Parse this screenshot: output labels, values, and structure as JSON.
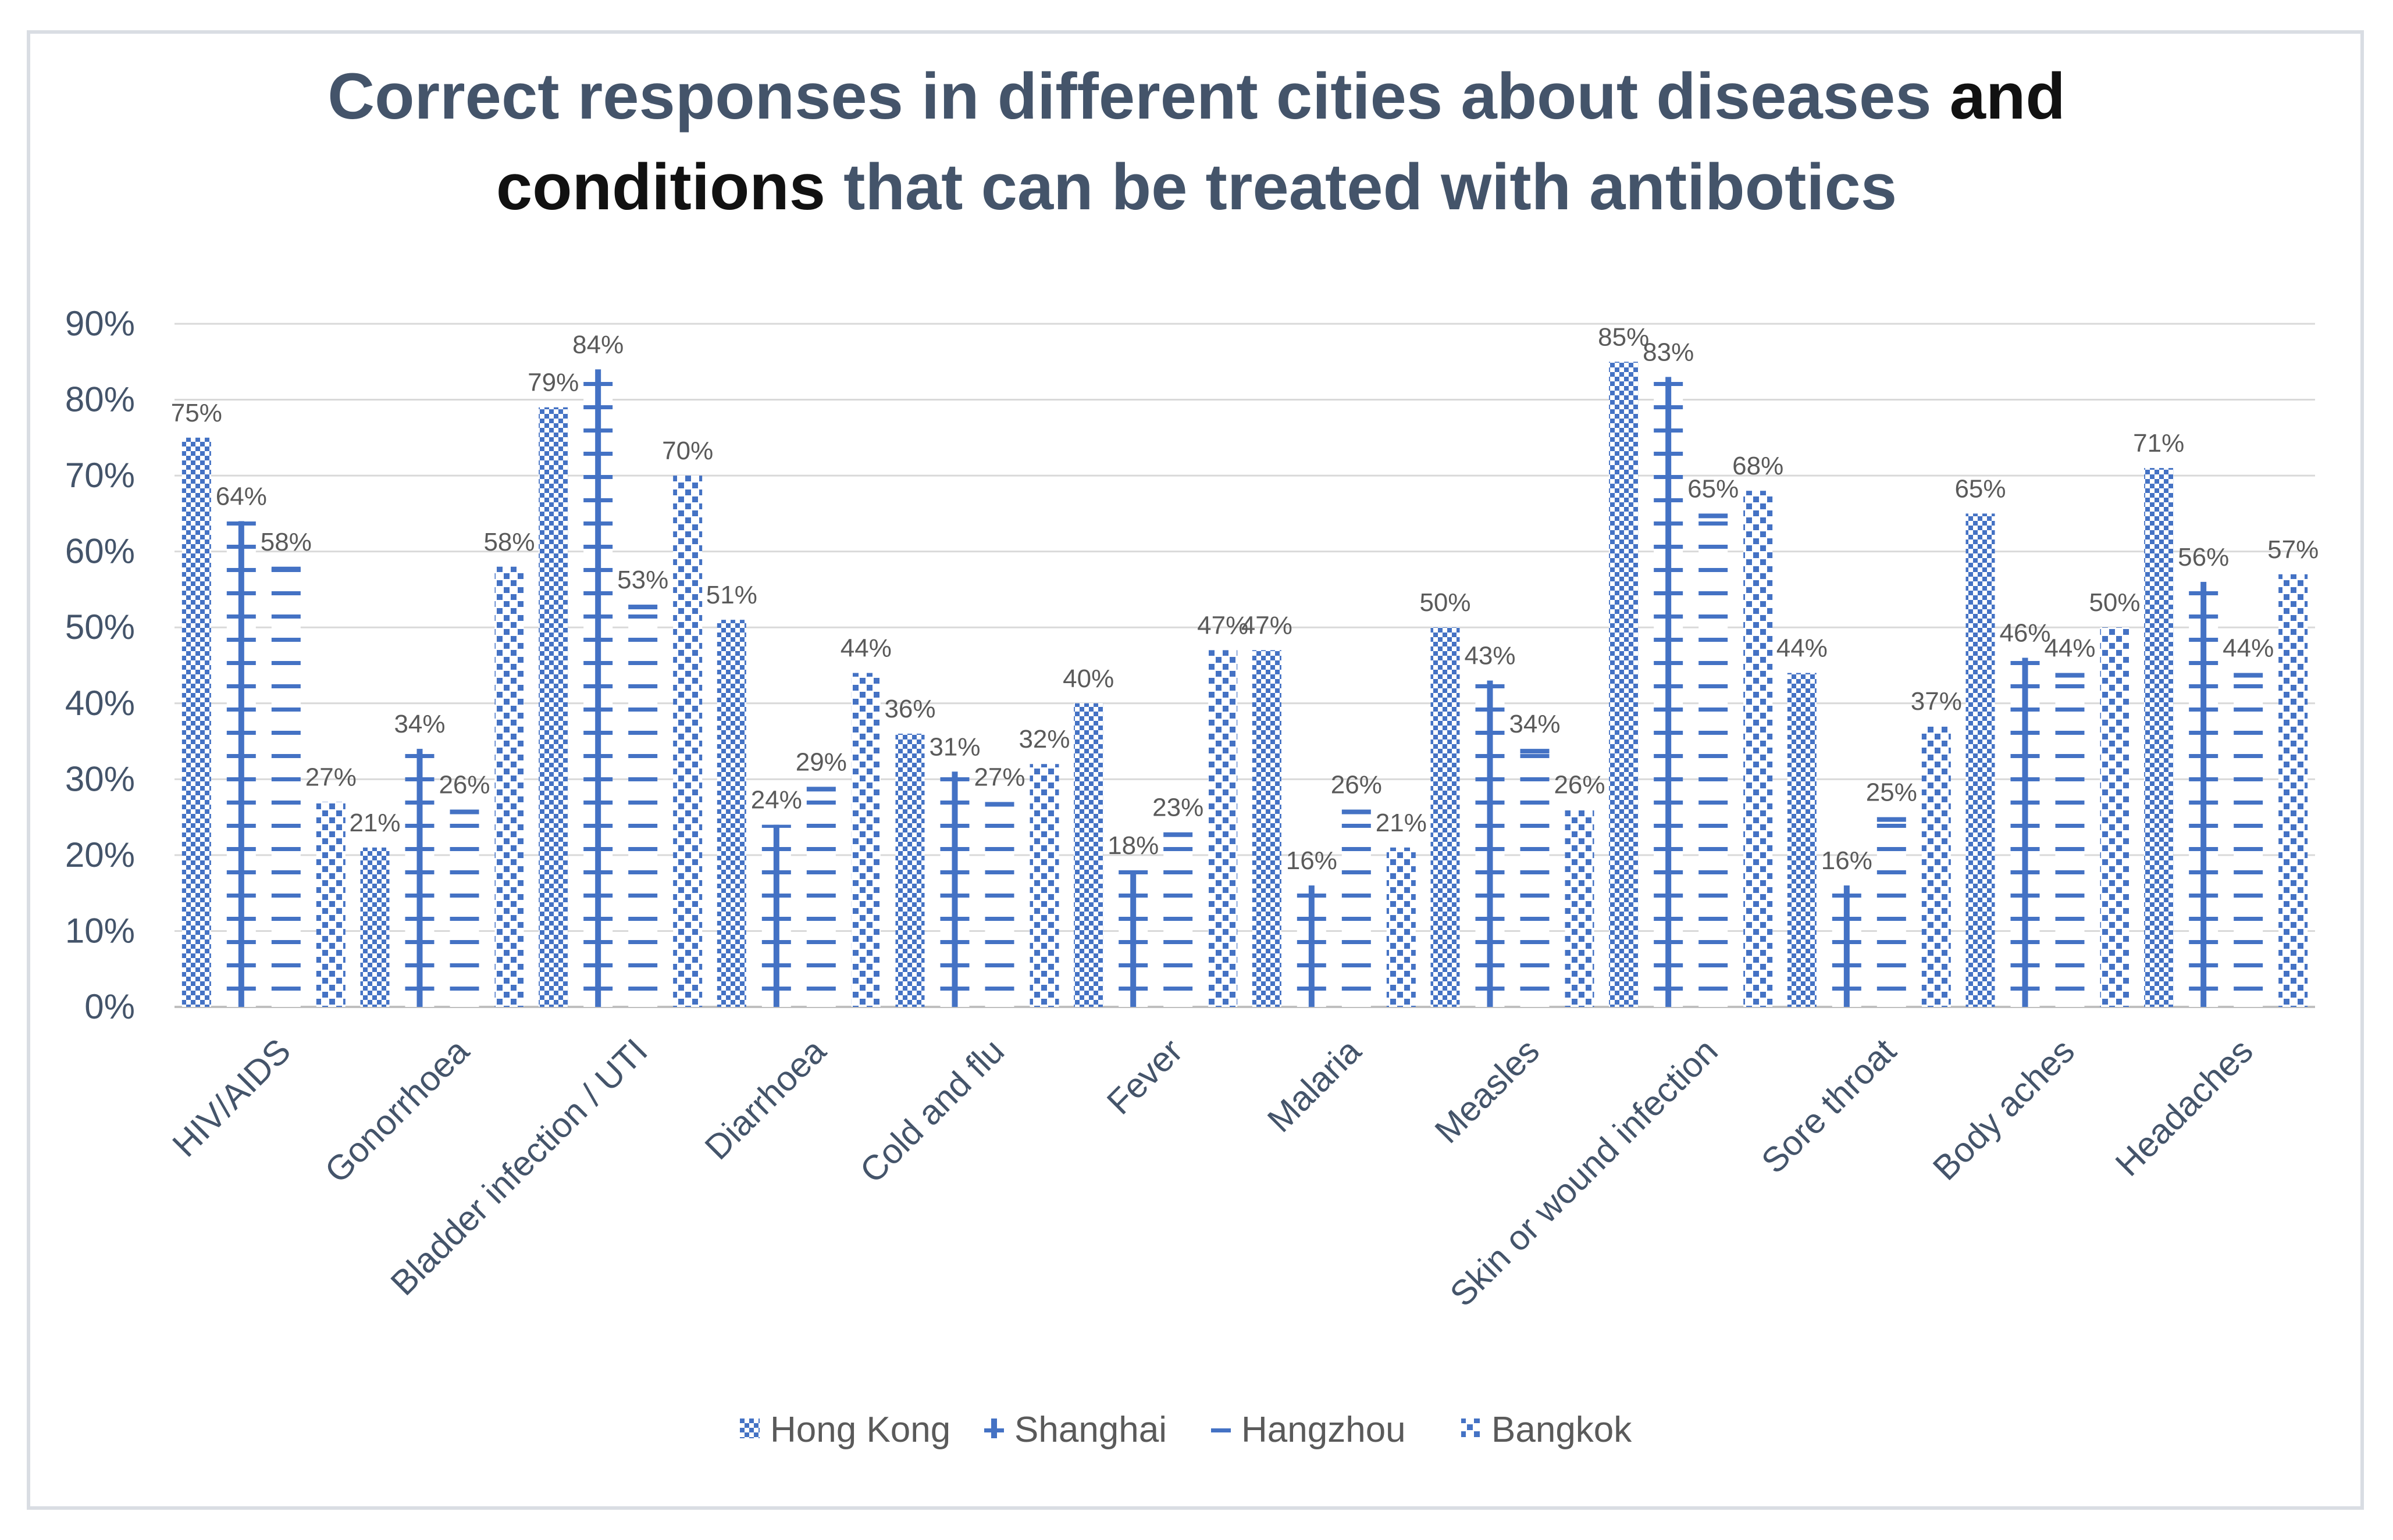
{
  "chart_data": {
    "type": "bar",
    "title_parts": [
      {
        "text": "Correct responses in different cities about diseases ",
        "dark": false
      },
      {
        "text": "and",
        "dark": true
      },
      {
        "text": " ",
        "dark": false
      },
      {
        "text": "conditions",
        "dark": true
      },
      {
        "text": " that can be treated with antibotics",
        "dark": false
      }
    ],
    "categories": [
      "HIV/AIDS",
      "Gonorrhoea",
      "Bladder infection / UTI",
      "Diarrhoea",
      "Cold and flu",
      "Fever",
      "Malaria",
      "Measles",
      "Skin or wound infection",
      "Sore throat",
      "Body aches",
      "Headaches"
    ],
    "series": [
      {
        "name": "Hong Kong",
        "pattern": "checker",
        "values": [
          75,
          21,
          79,
          51,
          36,
          40,
          47,
          50,
          85,
          44,
          65,
          71
        ]
      },
      {
        "name": "Shanghai",
        "pattern": "ladder",
        "values": [
          64,
          34,
          84,
          24,
          31,
          18,
          16,
          43,
          83,
          16,
          46,
          56
        ]
      },
      {
        "name": "Hangzhou",
        "pattern": "dash",
        "values": [
          58,
          26,
          53,
          29,
          27,
          23,
          26,
          34,
          65,
          25,
          44,
          44
        ]
      },
      {
        "name": "Bangkok",
        "pattern": "dots",
        "values": [
          27,
          58,
          70,
          44,
          32,
          47,
          21,
          26,
          68,
          37,
          50,
          57
        ]
      }
    ],
    "ytick_labels": [
      "0%",
      "10%",
      "20%",
      "30%",
      "40%",
      "50%",
      "60%",
      "70%",
      "80%",
      "90%"
    ],
    "ylim": [
      0,
      90
    ],
    "ystep": 10,
    "grid": true,
    "legend_position": "bottom",
    "bar_color": "#4472c4",
    "grid_color": "#d9d9d9"
  }
}
